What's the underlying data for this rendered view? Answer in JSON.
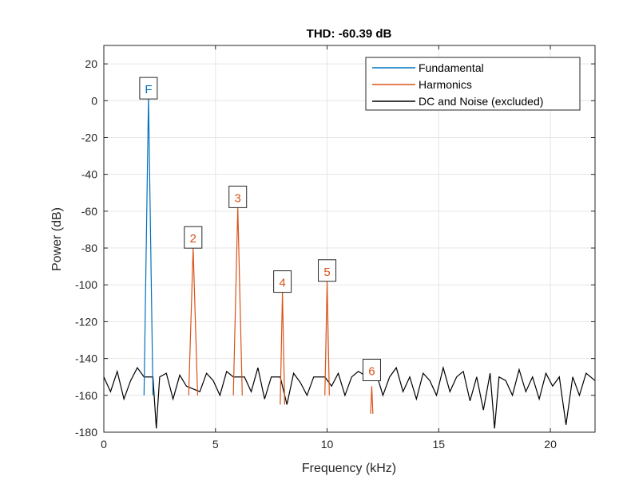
{
  "chart_data": {
    "type": "line",
    "title": "THD: -60.39 dB",
    "xlabel": "Frequency (kHz)",
    "ylabel": "Power (dB)",
    "xlim": [
      0,
      22
    ],
    "ylim": [
      -180,
      30
    ],
    "xticks": [
      0,
      5,
      10,
      15,
      20
    ],
    "yticks": [
      20,
      0,
      -20,
      -40,
      -60,
      -80,
      -100,
      -120,
      -140,
      -160,
      -180
    ],
    "grid": true,
    "legend_position": "top-right",
    "series": [
      {
        "name": "Fundamental",
        "color": "#0072BD",
        "x": [
          1.8,
          2.0,
          2.2
        ],
        "y": [
          -160,
          2,
          -160
        ]
      },
      {
        "name": "Harmonics",
        "color": "#D95319",
        "x": [
          3.8,
          4.0,
          4.2,
          5.8,
          6.0,
          6.2,
          7.9,
          8.0,
          8.1,
          9.9,
          10.0,
          10.1,
          11.95,
          12.0,
          12.05
        ],
        "y": [
          -160,
          -80,
          -160,
          -160,
          -58,
          -160,
          -165,
          -104,
          -165,
          -160,
          -98,
          -160,
          -170,
          -155,
          -170
        ]
      },
      {
        "name": "DC and Noise (excluded)",
        "color": "#000000",
        "x": [
          0,
          0.3,
          0.6,
          0.9,
          1.2,
          1.5,
          1.8,
          2.2,
          2.35,
          2.5,
          2.8,
          3.1,
          3.4,
          3.7,
          4.3,
          4.6,
          4.9,
          5.2,
          5.5,
          5.8,
          6.3,
          6.6,
          6.9,
          7.2,
          7.5,
          7.9,
          8.2,
          8.5,
          8.8,
          9.1,
          9.4,
          9.9,
          10.2,
          10.5,
          10.8,
          11.1,
          11.4,
          11.8,
          12.2,
          12.5,
          12.8,
          13.1,
          13.4,
          13.7,
          14.0,
          14.3,
          14.6,
          14.9,
          15.2,
          15.5,
          15.8,
          16.1,
          16.4,
          16.7,
          17.0,
          17.3,
          17.5,
          17.7,
          18.0,
          18.3,
          18.6,
          18.9,
          19.2,
          19.5,
          19.8,
          20.1,
          20.4,
          20.7,
          21.0,
          21.3,
          21.6,
          22.0
        ],
        "y": [
          -150,
          -158,
          -147,
          -162,
          -152,
          -145,
          -150,
          -150,
          -178,
          -150,
          -148,
          -162,
          -149,
          -155,
          -158,
          -148,
          -152,
          -160,
          -147,
          -150,
          -150,
          -158,
          -145,
          -162,
          -150,
          -150,
          -165,
          -148,
          -153,
          -160,
          -150,
          -150,
          -155,
          -148,
          -160,
          -150,
          -147,
          -150,
          -148,
          -160,
          -150,
          -145,
          -158,
          -150,
          -162,
          -148,
          -152,
          -160,
          -145,
          -158,
          -150,
          -147,
          -163,
          -150,
          -168,
          -148,
          -178,
          -150,
          -152,
          -160,
          -146,
          -158,
          -150,
          -162,
          -148,
          -155,
          -150,
          -176,
          -150,
          -160,
          -148,
          -152
        ]
      }
    ],
    "annotations": [
      {
        "label": "F",
        "x": 2.0,
        "y": 7,
        "color": "#0072BD"
      },
      {
        "label": "2",
        "x": 4.0,
        "y": -74,
        "color": "#D95319"
      },
      {
        "label": "3",
        "x": 6.0,
        "y": -52,
        "color": "#D95319"
      },
      {
        "label": "4",
        "x": 8.0,
        "y": -98,
        "color": "#D95319"
      },
      {
        "label": "5",
        "x": 10.0,
        "y": -92,
        "color": "#D95319"
      },
      {
        "label": "6",
        "x": 12.0,
        "y": -146,
        "color": "#D95319"
      }
    ]
  }
}
